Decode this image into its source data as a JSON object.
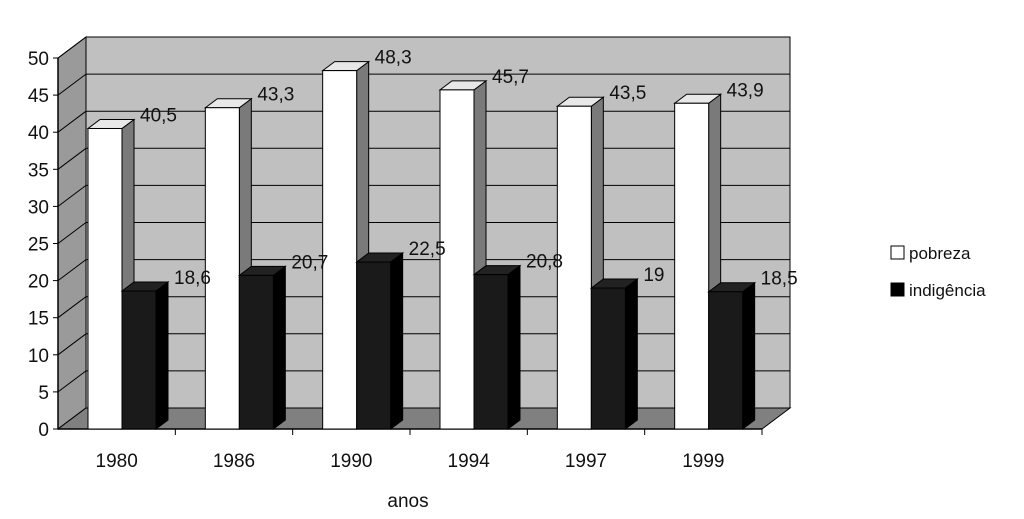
{
  "chart_data": {
    "type": "bar",
    "style": "3d-clustered",
    "categories": [
      "1980",
      "1986",
      "1990",
      "1994",
      "1997",
      "1999"
    ],
    "series": [
      {
        "name": "pobreza",
        "values": [
          40.5,
          43.3,
          48.3,
          45.7,
          43.5,
          43.9
        ],
        "labels": [
          "40,5",
          "43,3",
          "48,3",
          "45,7",
          "43,5",
          "43,9"
        ],
        "color": "#ffffff"
      },
      {
        "name": "indigência",
        "values": [
          18.6,
          20.7,
          22.5,
          20.8,
          19,
          18.5
        ],
        "labels": [
          "18,6",
          "20,7",
          "22,5",
          "20,8",
          "19",
          "18,5"
        ],
        "color": "#000000"
      }
    ],
    "xlabel": "anos",
    "ylabel": "",
    "ylim": [
      0,
      50
    ],
    "yticks": [
      "0",
      "5",
      "10",
      "15",
      "20",
      "25",
      "30",
      "35",
      "40",
      "45",
      "50"
    ],
    "grid": true,
    "legend_position": "right",
    "colors": {
      "wall": "#c0c0c0",
      "floor": "#808080",
      "side_wall": "#9a9a9a"
    }
  }
}
